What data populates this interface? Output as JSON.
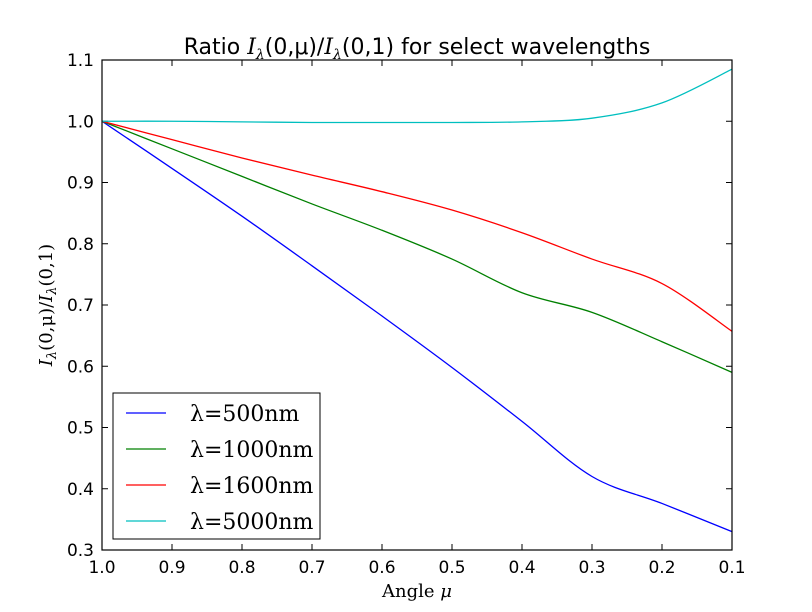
{
  "chart_data": {
    "type": "line",
    "title": {
      "prefix": "Ratio ",
      "math": "I",
      "sub": "λ",
      "mid": "(0,μ)/",
      "math2": "I",
      "sub2": "λ",
      "tail": "(0,1)",
      "suffix": " for select wavelengths"
    },
    "xlabel": {
      "text": "Angle ",
      "math": "μ"
    },
    "ylabel": {
      "math": "I",
      "sub": "λ",
      "mid": "(0,μ)/",
      "math2": "I",
      "sub2": "λ",
      "tail": "(0,1)"
    },
    "xlim": [
      1.0,
      0.1
    ],
    "ylim": [
      0.3,
      1.1
    ],
    "x_ticks": [
      "1.0",
      "0.9",
      "0.8",
      "0.7",
      "0.6",
      "0.5",
      "0.4",
      "0.3",
      "0.2",
      "0.1"
    ],
    "y_ticks": [
      "0.3",
      "0.4",
      "0.5",
      "0.6",
      "0.7",
      "0.8",
      "0.9",
      "1.0",
      "1.1"
    ],
    "x": [
      1.0,
      0.9,
      0.8,
      0.7,
      0.6,
      0.5,
      0.4,
      0.3,
      0.2,
      0.1
    ],
    "legend_position": "lower-left",
    "series": [
      {
        "name": "λ=500nm",
        "color": "#0000ff",
        "values": [
          1.0,
          0.923,
          0.845,
          0.764,
          0.682,
          0.598,
          0.51,
          0.42,
          0.376,
          0.33
        ]
      },
      {
        "name": "λ=1000nm",
        "color": "#008000",
        "values": [
          1.0,
          0.955,
          0.91,
          0.865,
          0.822,
          0.775,
          0.72,
          0.688,
          0.64,
          0.59
        ]
      },
      {
        "name": "λ=1600nm",
        "color": "#ff0000",
        "values": [
          1.0,
          0.97,
          0.94,
          0.912,
          0.885,
          0.855,
          0.818,
          0.775,
          0.735,
          0.657
        ]
      },
      {
        "name": "λ=5000nm",
        "color": "#00bfbf",
        "values": [
          1.0,
          1.0,
          0.999,
          0.998,
          0.998,
          0.998,
          0.999,
          1.005,
          1.03,
          1.085
        ]
      }
    ]
  }
}
